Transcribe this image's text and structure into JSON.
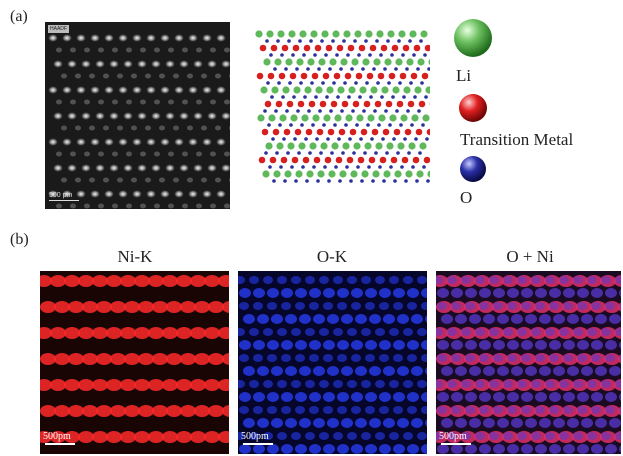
{
  "panel_a": {
    "label": "(a)",
    "stem_badge": "HAADF",
    "stem_scale": "500 pm",
    "legend": [
      {
        "name": "Li",
        "color": "#5fb85a"
      },
      {
        "name": "Transition Metal",
        "color": "#d62020"
      },
      {
        "name": "O",
        "color": "#2a2f9a"
      }
    ]
  },
  "panel_b": {
    "label": "(b)",
    "maps": [
      {
        "title": "Ni-K",
        "scale": "500pm",
        "color": "#ff2a2a"
      },
      {
        "title": "O-K",
        "scale": "500pm",
        "color": "#2a40ff"
      },
      {
        "title": "O + Ni",
        "scale": "500pm",
        "color": "#e0306a"
      }
    ]
  }
}
